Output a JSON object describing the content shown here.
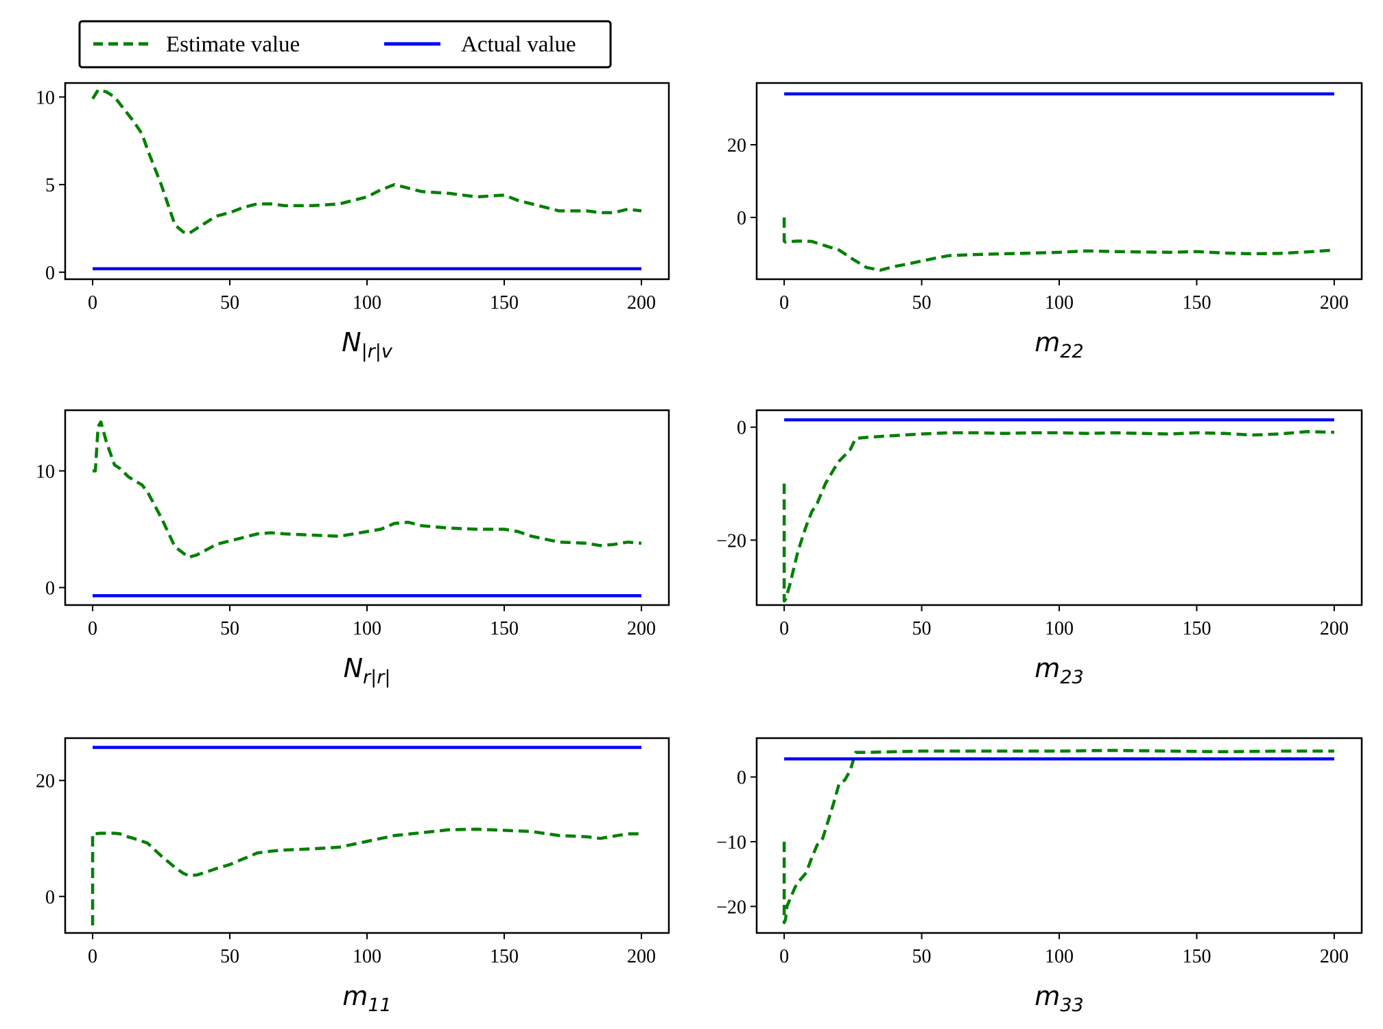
{
  "legend": {
    "estimate_label": "Estimate value",
    "actual_label": "Actual value"
  },
  "colors": {
    "estimate": "#008000",
    "actual": "#0000ff",
    "axes": "#000000"
  },
  "chart_data": [
    {
      "type": "line",
      "xlabel_main": "N",
      "xlabel_sub": "|r|v",
      "xlim": [
        -10,
        210
      ],
      "ylim": [
        -0.4,
        10.8
      ],
      "xticks": [
        0,
        50,
        100,
        150,
        200
      ],
      "yticks": [
        0,
        5,
        10
      ],
      "series": [
        {
          "name": "Estimate value",
          "style": "dashed",
          "x": [
            0,
            2,
            5,
            8,
            12,
            15,
            18,
            20,
            25,
            30,
            33,
            35,
            38,
            42,
            45,
            50,
            55,
            60,
            65,
            70,
            75,
            80,
            90,
            100,
            105,
            110,
            115,
            120,
            130,
            140,
            150,
            155,
            160,
            170,
            180,
            185,
            190,
            195,
            200
          ],
          "y": [
            9.9,
            10.4,
            10.3,
            10.0,
            9.2,
            8.6,
            7.9,
            7.0,
            5.0,
            2.7,
            2.3,
            2.2,
            2.5,
            2.9,
            3.2,
            3.4,
            3.7,
            3.9,
            3.9,
            3.8,
            3.8,
            3.8,
            3.9,
            4.3,
            4.7,
            5.0,
            4.8,
            4.6,
            4.5,
            4.3,
            4.4,
            4.1,
            3.9,
            3.5,
            3.5,
            3.4,
            3.4,
            3.6,
            3.5
          ]
        },
        {
          "name": "Actual value",
          "style": "solid",
          "x": [
            0,
            200
          ],
          "y": [
            0.2,
            0.2
          ]
        }
      ]
    },
    {
      "type": "line",
      "xlabel_main": "m",
      "xlabel_sub": "22",
      "xlim": [
        -10,
        210
      ],
      "ylim": [
        -17,
        37
      ],
      "xticks": [
        0,
        50,
        100,
        150,
        200
      ],
      "yticks": [
        0,
        20
      ],
      "series": [
        {
          "name": "Estimate value",
          "style": "dashed",
          "x": [
            0,
            0,
            0.5,
            1,
            5,
            10,
            15,
            20,
            25,
            30,
            35,
            40,
            45,
            50,
            55,
            60,
            70,
            80,
            90,
            100,
            110,
            120,
            130,
            140,
            150,
            160,
            170,
            180,
            190,
            200
          ],
          "y": [
            0,
            -6.5,
            -6.8,
            -6.7,
            -6.5,
            -6.6,
            -7.8,
            -9.0,
            -11.5,
            -13.8,
            -14.5,
            -13.5,
            -12.8,
            -12.0,
            -11.2,
            -10.5,
            -10.2,
            -10.0,
            -9.8,
            -9.6,
            -9.2,
            -9.4,
            -9.5,
            -9.6,
            -9.4,
            -9.8,
            -10.0,
            -9.9,
            -9.5,
            -9.0
          ]
        },
        {
          "name": "Actual value",
          "style": "solid",
          "x": [
            0,
            200
          ],
          "y": [
            34,
            34
          ]
        }
      ]
    },
    {
      "type": "line",
      "xlabel_main": "N",
      "xlabel_sub": "r|r|",
      "xlim": [
        -10,
        210
      ],
      "ylim": [
        -1.5,
        15.2
      ],
      "xticks": [
        0,
        50,
        100,
        150,
        200
      ],
      "yticks": [
        0,
        10
      ],
      "series": [
        {
          "name": "Estimate value",
          "style": "dashed",
          "x": [
            0,
            1,
            2,
            3,
            5,
            8,
            10,
            13,
            15,
            18,
            20,
            25,
            30,
            35,
            38,
            42,
            45,
            50,
            55,
            60,
            65,
            70,
            80,
            90,
            100,
            105,
            110,
            115,
            120,
            130,
            140,
            150,
            155,
            160,
            170,
            180,
            185,
            190,
            195,
            200
          ],
          "y": [
            10.0,
            10.0,
            13.8,
            14.2,
            12.5,
            10.5,
            10.2,
            9.5,
            9.2,
            8.8,
            8.2,
            6.0,
            3.5,
            2.6,
            2.8,
            3.3,
            3.7,
            4.0,
            4.3,
            4.6,
            4.7,
            4.6,
            4.5,
            4.4,
            4.8,
            5.0,
            5.5,
            5.6,
            5.3,
            5.1,
            5.0,
            5.0,
            4.8,
            4.4,
            3.9,
            3.8,
            3.6,
            3.7,
            3.9,
            3.8
          ]
        },
        {
          "name": "Actual value",
          "style": "solid",
          "x": [
            0,
            200
          ],
          "y": [
            -0.7,
            -0.7
          ]
        }
      ]
    },
    {
      "type": "line",
      "xlabel_main": "m",
      "xlabel_sub": "23",
      "xlim": [
        -10,
        210
      ],
      "ylim": [
        -31.5,
        3.0
      ],
      "xticks": [
        0,
        50,
        100,
        150,
        200
      ],
      "yticks": [
        -20,
        0
      ],
      "series": [
        {
          "name": "Estimate value",
          "style": "dashed",
          "x": [
            0,
            0,
            0.5,
            2,
            5,
            8,
            10,
            12,
            15,
            18,
            20,
            22,
            24,
            26,
            30,
            40,
            50,
            60,
            70,
            80,
            90,
            100,
            110,
            120,
            130,
            140,
            150,
            160,
            170,
            180,
            190,
            200
          ],
          "y": [
            -10,
            -30.8,
            -30.5,
            -28.0,
            -22.0,
            -17.5,
            -15.0,
            -13.5,
            -10.0,
            -7.5,
            -6.0,
            -5.0,
            -4.0,
            -2.0,
            -1.8,
            -1.5,
            -1.2,
            -1.0,
            -1.0,
            -1.1,
            -1.0,
            -1.0,
            -1.1,
            -1.0,
            -1.1,
            -1.2,
            -1.0,
            -1.1,
            -1.4,
            -1.2,
            -0.8,
            -0.9
          ]
        },
        {
          "name": "Actual value",
          "style": "solid",
          "x": [
            0,
            200
          ],
          "y": [
            1.3,
            1.3
          ]
        }
      ]
    },
    {
      "type": "line",
      "xlabel_main": "m",
      "xlabel_sub": "11",
      "xlim": [
        -10,
        210
      ],
      "ylim": [
        -6.3,
        27.3
      ],
      "xticks": [
        0,
        50,
        100,
        150,
        200
      ],
      "yticks": [
        0,
        20
      ],
      "series": [
        {
          "name": "Estimate value",
          "style": "dashed",
          "x": [
            0,
            0,
            0.5,
            3,
            5,
            8,
            10,
            12,
            15,
            20,
            25,
            30,
            33,
            35,
            38,
            42,
            45,
            50,
            55,
            60,
            65,
            70,
            80,
            90,
            100,
            110,
            120,
            130,
            140,
            150,
            160,
            170,
            180,
            185,
            190,
            195,
            200
          ],
          "y": [
            -5,
            10.8,
            10.8,
            10.9,
            10.9,
            10.9,
            10.8,
            10.4,
            10.0,
            9.2,
            7.0,
            5.0,
            4.0,
            3.6,
            3.7,
            4.3,
            4.8,
            5.5,
            6.5,
            7.5,
            7.8,
            8.0,
            8.2,
            8.5,
            9.5,
            10.5,
            11.0,
            11.5,
            11.6,
            11.4,
            11.2,
            10.5,
            10.3,
            10.0,
            10.4,
            10.8,
            10.8
          ]
        },
        {
          "name": "Actual value",
          "style": "solid",
          "x": [
            0,
            200
          ],
          "y": [
            25.7,
            25.7
          ]
        }
      ]
    },
    {
      "type": "line",
      "xlabel_main": "m",
      "xlabel_sub": "33",
      "xlim": [
        -10,
        210
      ],
      "ylim": [
        -24.1,
        6.0
      ],
      "xticks": [
        0,
        50,
        100,
        150,
        200
      ],
      "yticks": [
        -20,
        -10,
        0
      ],
      "series": [
        {
          "name": "Estimate value",
          "style": "dashed",
          "x": [
            0,
            0,
            0.5,
            1,
            2,
            4,
            6,
            8,
            10,
            12,
            14,
            16,
            18,
            20,
            22,
            24,
            26,
            30,
            40,
            50,
            60,
            80,
            100,
            120,
            140,
            160,
            180,
            200
          ],
          "y": [
            -10,
            -22.5,
            -22.0,
            -20.0,
            -19.0,
            -17.0,
            -15.8,
            -14.8,
            -12.5,
            -10.5,
            -9.5,
            -6.8,
            -4.0,
            -1.0,
            -0.5,
            1.0,
            3.8,
            3.8,
            3.9,
            4.0,
            4.0,
            4.0,
            4.0,
            4.1,
            4.0,
            3.9,
            4.0,
            4.0
          ]
        },
        {
          "name": "Actual value",
          "style": "solid",
          "x": [
            0,
            200
          ],
          "y": [
            2.8,
            2.8
          ]
        }
      ]
    }
  ]
}
